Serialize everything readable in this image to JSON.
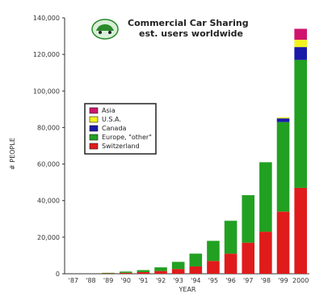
{
  "chart_data": {
    "type": "bar",
    "stacked": true,
    "title": "Commercial Car Sharing",
    "subtitle": "est. users worldwide",
    "xlabel": "YEAR",
    "ylabel": "# PEOPLE",
    "ylim": [
      0,
      140000
    ],
    "yticks": [
      "0",
      "20,000",
      "40,000",
      "60,000",
      "80,000",
      "100,000",
      "120,000",
      "140,000"
    ],
    "grid": false,
    "legend_placement": "upper-left",
    "categories": [
      "'87",
      "'88",
      "'89",
      "'90",
      "'91",
      "'92",
      "'93",
      "'94",
      "'95",
      "'96",
      "'97",
      "'98",
      "'99",
      "2000"
    ],
    "series": [
      {
        "name": "Switzerland",
        "color": "#e01b1b",
        "values": [
          0,
          0,
          200,
          500,
          900,
          1500,
          2600,
          4000,
          7000,
          11000,
          17000,
          23000,
          34000,
          47000
        ]
      },
      {
        "name": "Europe, \"other\"",
        "color": "#22a022",
        "values": [
          0,
          0,
          300,
          700,
          1100,
          2000,
          3900,
          7000,
          11000,
          18000,
          26000,
          38000,
          49000,
          70000
        ]
      },
      {
        "name": "Canada",
        "color": "#1a1aa8",
        "values": [
          0,
          0,
          0,
          0,
          0,
          0,
          0,
          0,
          0,
          0,
          0,
          0,
          2000,
          7000
        ]
      },
      {
        "name": "U.S.A.",
        "color": "#f2f21e",
        "values": [
          0,
          0,
          0,
          0,
          0,
          0,
          0,
          0,
          0,
          0,
          0,
          0,
          500,
          4000
        ]
      },
      {
        "name": "Asia",
        "color": "#d0146e",
        "values": [
          0,
          0,
          0,
          0,
          0,
          0,
          0,
          0,
          0,
          0,
          0,
          0,
          0,
          6000
        ]
      }
    ]
  }
}
